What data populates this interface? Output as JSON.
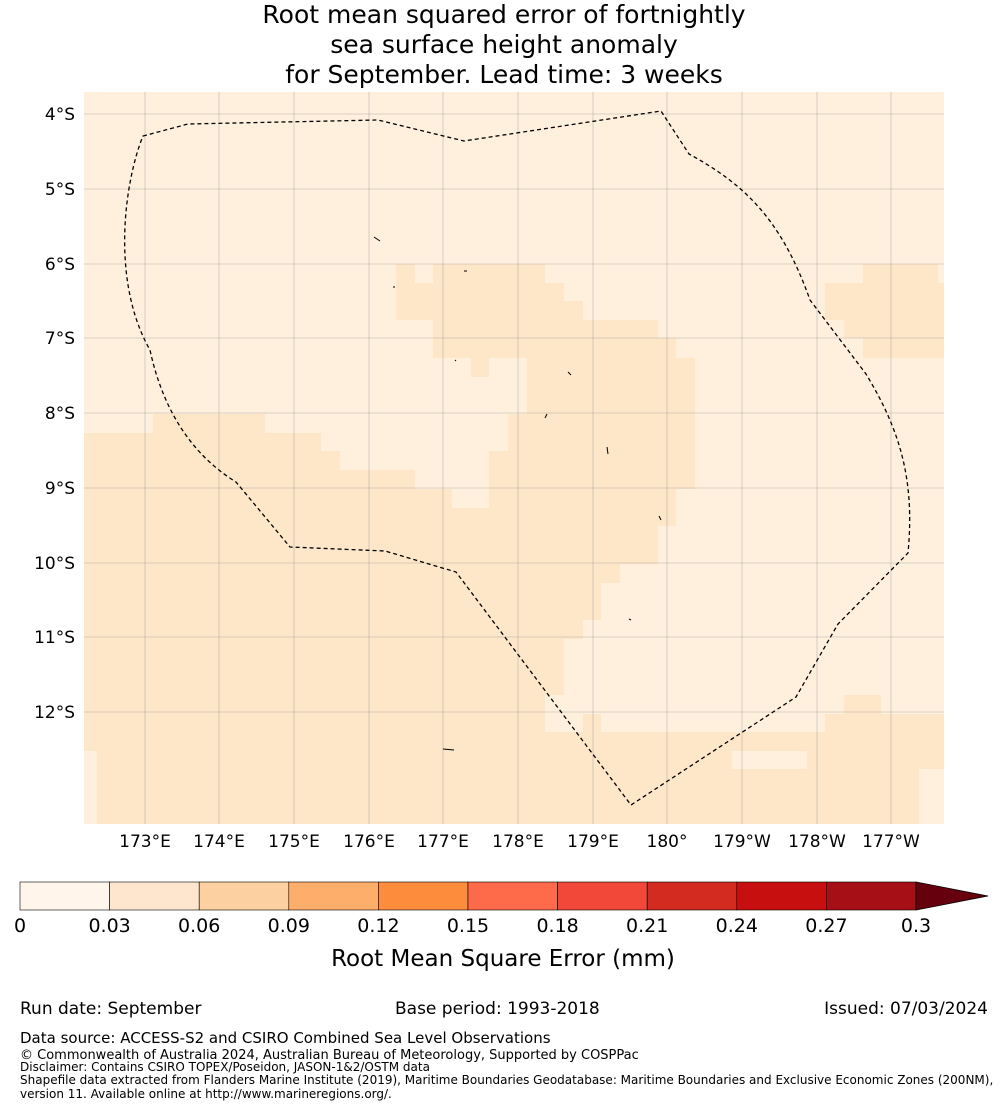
{
  "title": {
    "line1": "Root mean squared error of fortnightly",
    "line2": "sea surface height anomaly",
    "line3": "for September. Lead time: 3 weeks"
  },
  "map": {
    "lat_labels": [
      "4°S",
      "5°S",
      "6°S",
      "7°S",
      "8°S",
      "9°S",
      "10°S",
      "11°S",
      "12°S"
    ],
    "lon_labels": [
      "173°E",
      "174°E",
      "175°E",
      "176°E",
      "177°E",
      "178°E",
      "179°E",
      "180°",
      "179°W",
      "178°W",
      "177°W"
    ],
    "colors": {
      "class_0_003": "#fff0de",
      "class_003_006": "#fee6c8"
    }
  },
  "colorbar": {
    "ticks": [
      "0",
      "0.03",
      "0.06",
      "0.09",
      "0.12",
      "0.15",
      "0.18",
      "0.21",
      "0.24",
      "0.27",
      "0.3"
    ],
    "colors": [
      "#fff5eb",
      "#fee6ce",
      "#fdd0a2",
      "#fdae6b",
      "#fd8d3c",
      "#fd6b4b",
      "#f1483a",
      "#d42b20",
      "#c80f0f",
      "#a50f15",
      "#67000d"
    ],
    "label": "Root Mean Square Error (mm)"
  },
  "footer": {
    "run_date": "Run date: September",
    "base_period": "Base period: 1993-2018",
    "issued": "Issued: 07/03/2024",
    "data_source": "Data source: ACCESS-S2 and CSIRO Combined Sea Level Observations",
    "copyright": "© Commonwealth of Australia 2024, Australian Bureau of Meteorology, Supported by COSPPac",
    "disclaimer": "Disclaimer: Contains CSIRO TOPEX/Poseidon, JASON-1&2/OSTM data",
    "shapefile1": "Shapefile data extracted from Flanders Marine Institute (2019), Maritime Boundaries Geodatabase: Maritime Boundaries and Exclusive Economic Zones (200NM),",
    "shapefile2": "version 11. Available online at http://www.marineregions.org/."
  }
}
